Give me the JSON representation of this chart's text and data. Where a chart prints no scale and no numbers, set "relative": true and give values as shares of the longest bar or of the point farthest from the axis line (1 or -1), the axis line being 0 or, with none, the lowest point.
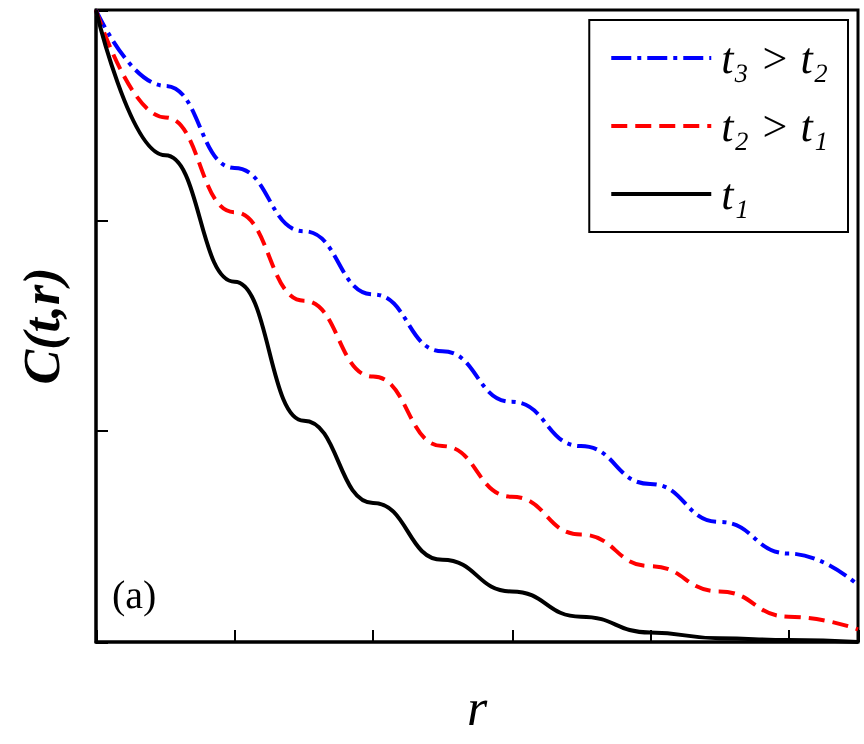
{
  "chart_data": {
    "type": "line",
    "relative": true,
    "xlabel": "r",
    "ylabel": "C(t,r)",
    "categories": [
      null,
      null,
      null,
      null,
      null,
      null,
      null,
      null,
      null,
      null,
      null,
      null
    ],
    "series": [
      {
        "name": "t₃ > t₂",
        "color": "#0000ff",
        "line_style": "dashdot",
        "values": [
          1,
          0.88,
          0.75,
          0.65,
          0.55,
          0.46,
          0.38,
          0.31,
          0.25,
          0.19,
          0.14,
          0.09
        ]
      },
      {
        "name": "t₂ > t₁",
        "color": "#ff0000",
        "line_style": "dashed",
        "values": [
          1,
          0.83,
          0.68,
          0.54,
          0.42,
          0.31,
          0.23,
          0.17,
          0.12,
          0.08,
          0.04,
          0.02
        ]
      },
      {
        "name": "t₁",
        "color": "#000000",
        "line_style": "solid",
        "values": [
          1,
          0.77,
          0.57,
          0.35,
          0.22,
          0.13,
          0.08,
          0.04,
          0.015,
          0.006,
          0.003,
          0
        ]
      }
    ],
    "annotations": [
      "(a)"
    ],
    "legend": "top right",
    "marker": "none",
    "grid": false
  }
}
